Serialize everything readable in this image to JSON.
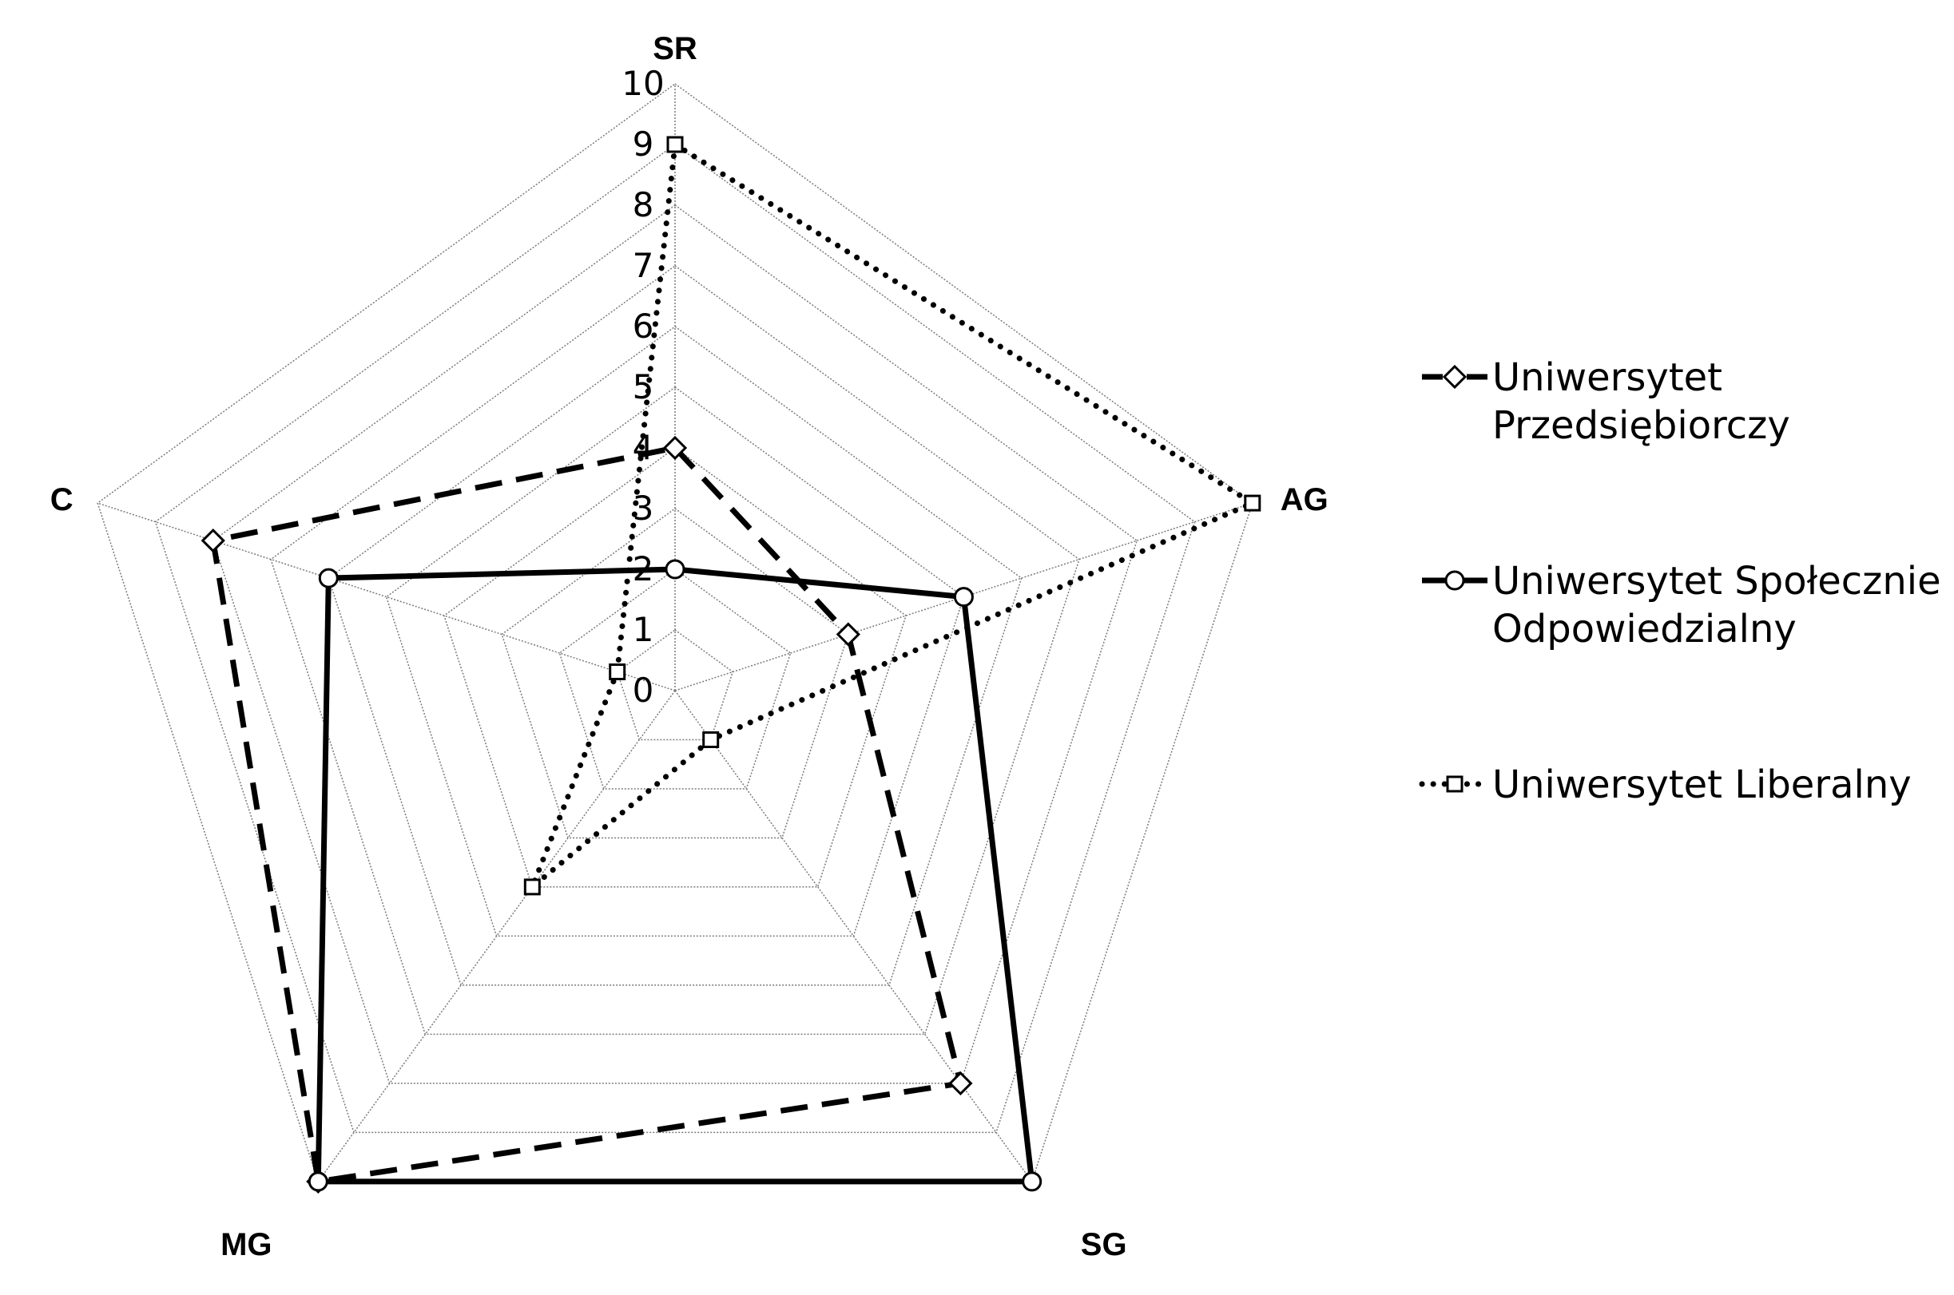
{
  "chart_data": {
    "type": "radar",
    "title": "",
    "axes": [
      "SR",
      "AG",
      "SG",
      "MG",
      "C"
    ],
    "rlim": [
      0,
      10
    ],
    "ticks": [
      0,
      1,
      2,
      3,
      4,
      5,
      6,
      7,
      8,
      9,
      10
    ],
    "grid": true,
    "legend_position": "right",
    "series": [
      {
        "name": "Uniwersytet Przedsiębiorczy",
        "name_lines": [
          "Uniwersytet",
          "Przedsiębiorczy"
        ],
        "line_style": "dashed",
        "marker": "diamond",
        "values": [
          4,
          3,
          8,
          10,
          8
        ]
      },
      {
        "name": "Uniwersytet Społecznie Odpowiedzialny",
        "name_lines": [
          "Uniwersytet Społecznie",
          "Odpowiedzialny"
        ],
        "line_style": "solid",
        "marker": "circle",
        "values": [
          2,
          5,
          10,
          10,
          6
        ]
      },
      {
        "name": "Uniwersytet Liberalny",
        "name_lines": [
          "Uniwersytet Liberalny"
        ],
        "line_style": "dotted",
        "marker": "square",
        "values": [
          9,
          10,
          1,
          4,
          1
        ]
      }
    ]
  }
}
